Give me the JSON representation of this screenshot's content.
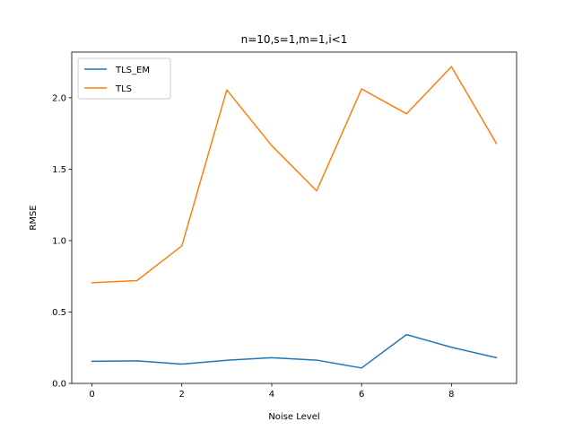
{
  "chart_data": {
    "type": "line",
    "title": "n=10,s=1,m=1,i<1",
    "xlabel": "Noise Level",
    "ylabel": "RMSE",
    "x": [
      0,
      1,
      2,
      3,
      4,
      5,
      6,
      7,
      8,
      9
    ],
    "xlim": [
      -0.45,
      9.45
    ],
    "ylim": [
      0,
      2.32
    ],
    "xticks": [
      0,
      2,
      4,
      6,
      8
    ],
    "yticks": [
      0.0,
      0.5,
      1.0,
      1.5,
      2.0
    ],
    "xtick_labels": [
      "0",
      "2",
      "4",
      "6",
      "8"
    ],
    "ytick_labels": [
      "0.0",
      "0.5",
      "1.0",
      "1.5",
      "2.0"
    ],
    "grid": false,
    "legend_position": "top-left",
    "series": [
      {
        "name": "TLS_EM",
        "color": "#1f77b4",
        "values": [
          0.155,
          0.158,
          0.135,
          0.162,
          0.18,
          0.163,
          0.108,
          0.342,
          0.253,
          0.18
        ]
      },
      {
        "name": "TLS",
        "color": "#ff7f0e",
        "values": [
          0.705,
          0.72,
          0.963,
          2.055,
          1.665,
          1.348,
          2.062,
          1.888,
          2.218,
          1.68
        ]
      }
    ]
  }
}
